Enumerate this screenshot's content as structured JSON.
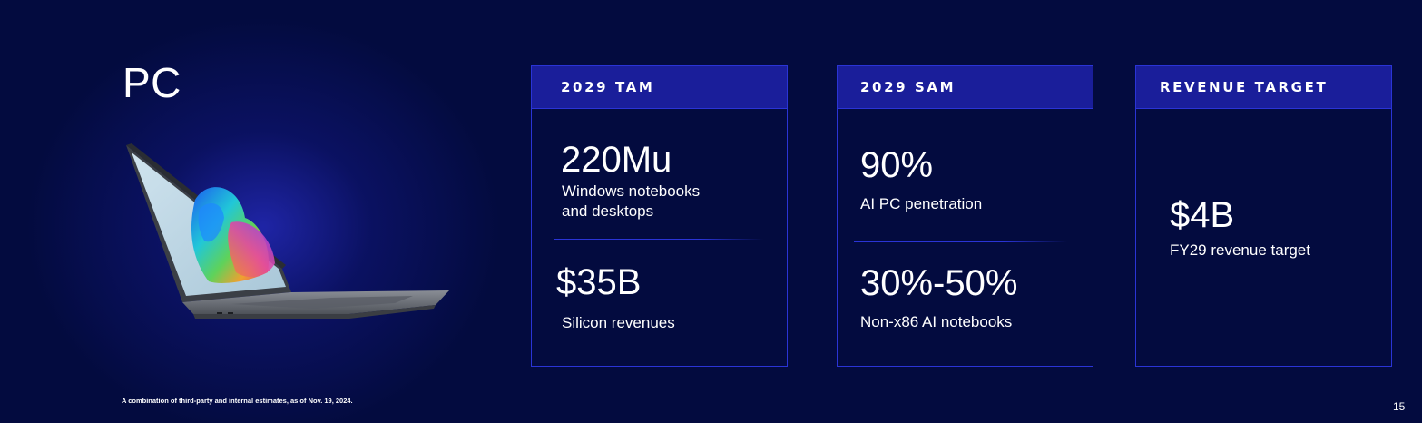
{
  "page": {
    "title": "PC",
    "footnote": "A combination of third-party and internal estimates, as of Nov. 19, 2024.",
    "page_number": "15"
  },
  "cards": [
    {
      "header": "2029 TAM",
      "metrics": [
        {
          "value": "220Mu",
          "label": "Windows notebooks and desktops"
        },
        {
          "value": "$35B",
          "label": "Silicon revenues"
        }
      ]
    },
    {
      "header": "2029 SAM",
      "metrics": [
        {
          "value": "90%",
          "label": "AI PC penetration"
        },
        {
          "value": "30%-50%",
          "label": "Non-x86 AI notebooks"
        }
      ]
    },
    {
      "header": "REVENUE TARGET",
      "metrics": [
        {
          "value": "$4B",
          "label": "FY29 revenue target"
        }
      ]
    }
  ],
  "colors": {
    "background": "#030b3f",
    "card_header": "#1a1e9a",
    "card_border": "#2a34d6",
    "text": "#ffffff"
  },
  "icons": {
    "hero_image": "laptop-image"
  }
}
